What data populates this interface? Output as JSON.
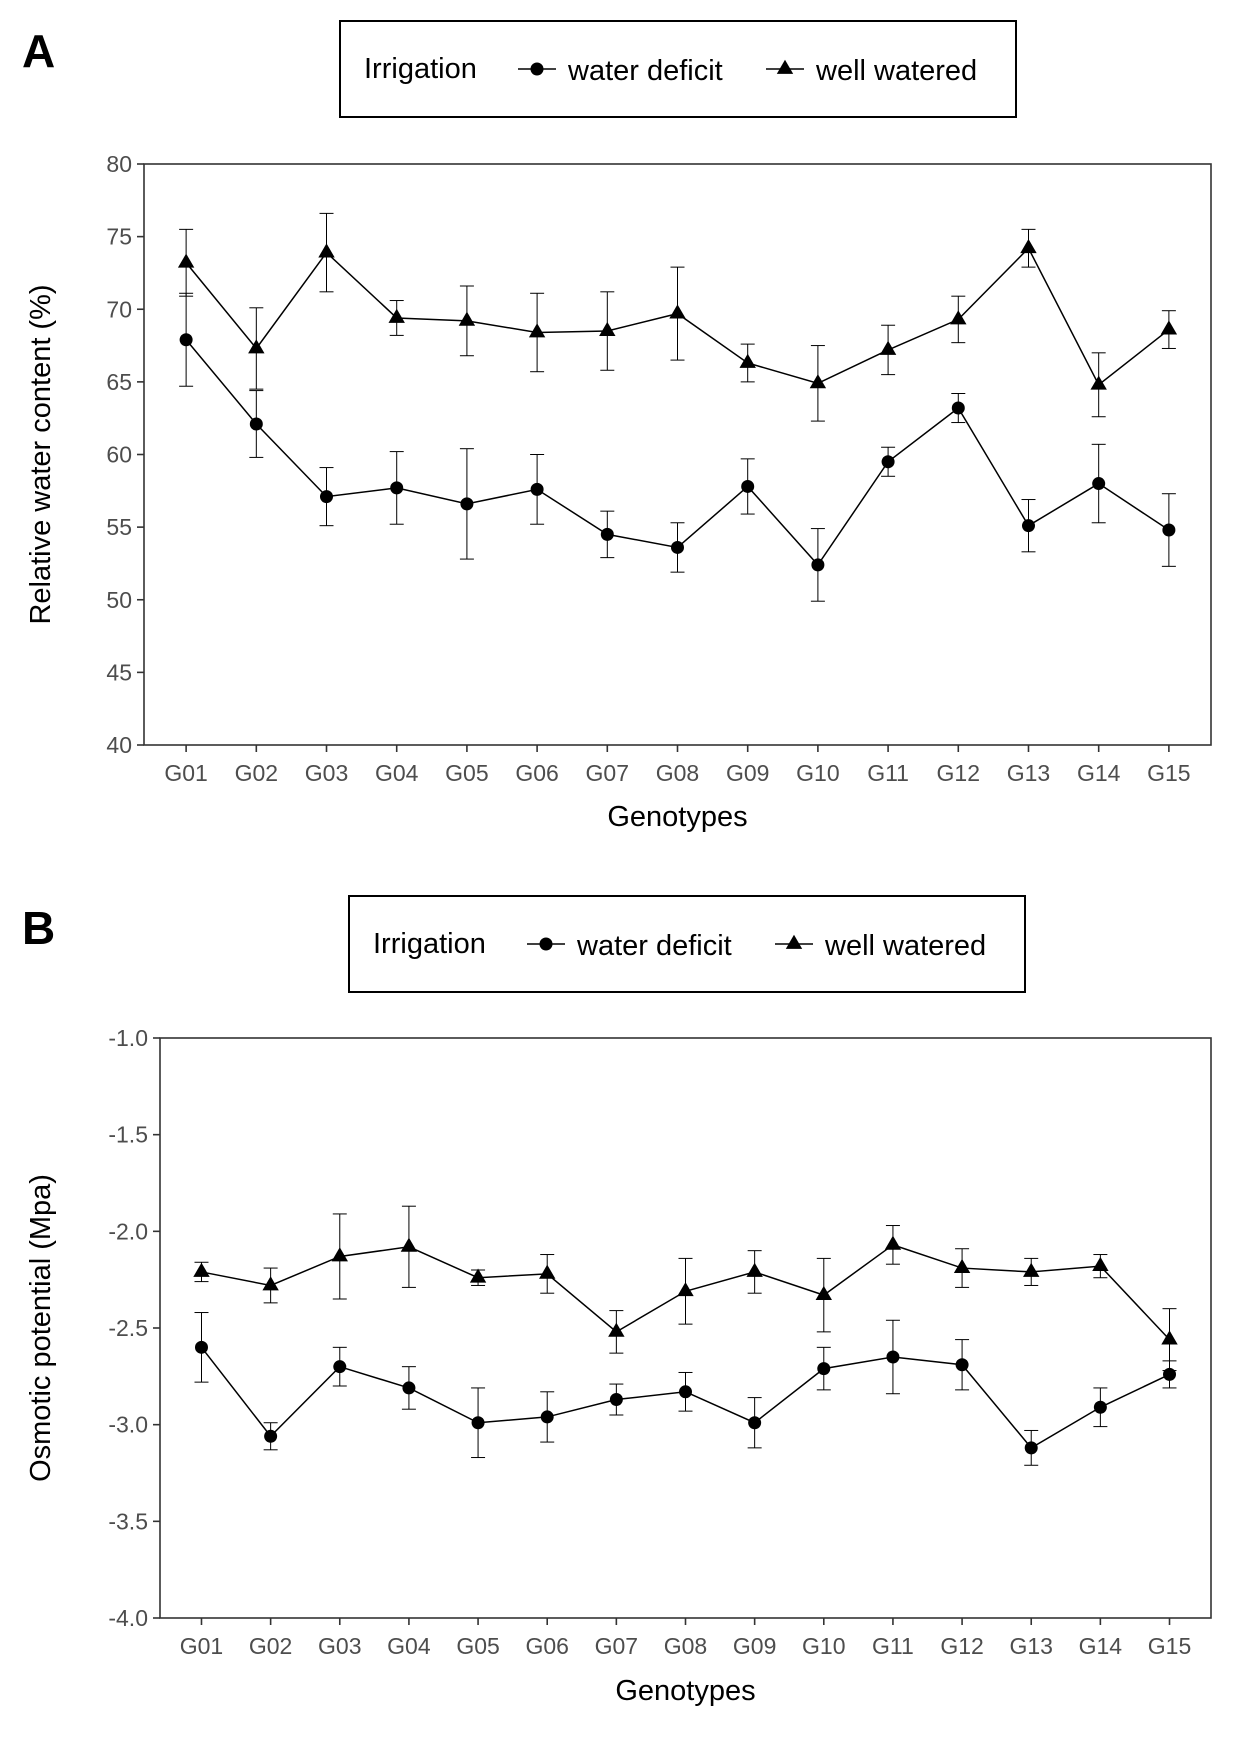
{
  "chart_data": [
    {
      "type": "line",
      "panel_label": "A",
      "legend": {
        "title": "Irrigation",
        "position": "top",
        "entries": [
          "water deficit",
          "well watered"
        ]
      },
      "xlabel": "Genotypes",
      "ylabel": "Relative water content (%)",
      "categories": [
        "G01",
        "G02",
        "G03",
        "G04",
        "G05",
        "G06",
        "G07",
        "G08",
        "G09",
        "G10",
        "G11",
        "G12",
        "G13",
        "G14",
        "G15"
      ],
      "ylim": [
        40,
        80
      ],
      "yticks": [
        40,
        45,
        50,
        55,
        60,
        65,
        70,
        75,
        80
      ],
      "ytick_labels": [
        "40",
        "45",
        "50",
        "55",
        "60",
        "65",
        "70",
        "75",
        "80"
      ],
      "grid": false,
      "series": [
        {
          "name": "water deficit",
          "marker": "circle",
          "values": [
            67.9,
            62.1,
            57.1,
            57.7,
            56.6,
            57.6,
            54.5,
            53.6,
            57.8,
            52.4,
            59.5,
            63.2,
            55.1,
            58.0,
            54.8
          ],
          "error": [
            3.2,
            2.3,
            2.0,
            2.5,
            3.8,
            2.4,
            1.6,
            1.7,
            1.9,
            2.5,
            1.0,
            1.0,
            1.8,
            2.7,
            2.5
          ]
        },
        {
          "name": "well watered",
          "marker": "triangle",
          "values": [
            73.2,
            67.3,
            73.9,
            69.4,
            69.2,
            68.4,
            68.5,
            69.7,
            66.3,
            64.9,
            67.2,
            69.3,
            74.2,
            64.8,
            68.6
          ],
          "error": [
            2.3,
            2.8,
            2.7,
            1.2,
            2.4,
            2.7,
            2.7,
            3.2,
            1.3,
            2.6,
            1.7,
            1.6,
            1.3,
            2.2,
            1.3
          ]
        }
      ]
    },
    {
      "type": "line",
      "panel_label": "B",
      "legend": {
        "title": "Irrigation",
        "position": "top",
        "entries": [
          "water deficit",
          "well watered"
        ]
      },
      "xlabel": "Genotypes",
      "ylabel": "Osmotic potential (Mpa)",
      "categories": [
        "G01",
        "G02",
        "G03",
        "G04",
        "G05",
        "G06",
        "G07",
        "G08",
        "G09",
        "G10",
        "G11",
        "G12",
        "G13",
        "G14",
        "G15"
      ],
      "ylim": [
        -4.0,
        -1.0
      ],
      "yticks": [
        -4.0,
        -3.5,
        -3.0,
        -2.5,
        -2.0,
        -1.5,
        -1.0
      ],
      "ytick_labels": [
        "-4.0",
        "-3.5",
        "-3.0",
        "-2.5",
        "-2.0",
        "-1.5",
        "-1.0"
      ],
      "grid": false,
      "series": [
        {
          "name": "water deficit",
          "marker": "circle",
          "values": [
            -2.6,
            -3.06,
            -2.7,
            -2.81,
            -2.99,
            -2.96,
            -2.87,
            -2.83,
            -2.99,
            -2.71,
            -2.65,
            -2.69,
            -3.12,
            -2.91,
            -2.74
          ],
          "error": [
            0.18,
            0.07,
            0.1,
            0.11,
            0.18,
            0.13,
            0.08,
            0.1,
            0.13,
            0.11,
            0.19,
            0.13,
            0.09,
            0.1,
            0.07
          ]
        },
        {
          "name": "well watered",
          "marker": "triangle",
          "values": [
            -2.21,
            -2.28,
            -2.13,
            -2.08,
            -2.24,
            -2.22,
            -2.52,
            -2.31,
            -2.21,
            -2.33,
            -2.07,
            -2.19,
            -2.21,
            -2.18,
            -2.56
          ],
          "error": [
            0.05,
            0.09,
            0.22,
            0.21,
            0.04,
            0.1,
            0.11,
            0.17,
            0.11,
            0.19,
            0.1,
            0.1,
            0.07,
            0.06,
            0.16
          ]
        }
      ]
    }
  ]
}
